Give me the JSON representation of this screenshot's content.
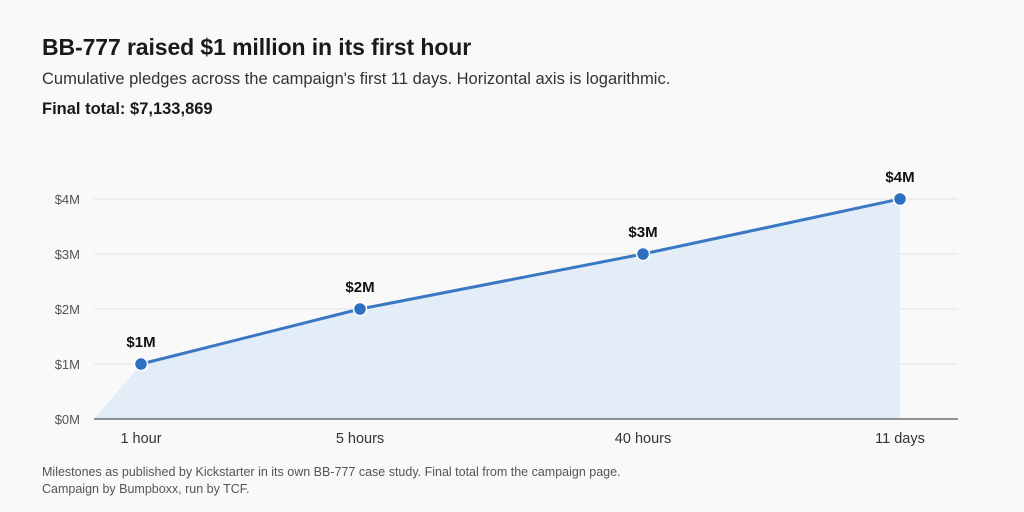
{
  "header": {
    "title": "BB-777 raised $1 million in its first hour",
    "subtitle": "Cumulative pledges across the campaign's first 11 days. Horizontal axis is logarithmic.",
    "total_label": "Final total:",
    "total_value": "$7,133,869"
  },
  "footer": {
    "line1": "Milestones as published by Kickstarter in its own BB-777 case study. Final total from the campaign page.",
    "line2": "Campaign by Bumpboxx, run by TCF."
  },
  "chart_data": {
    "type": "area",
    "x_scale": "log",
    "grid": true,
    "categories": [
      "1 hour",
      "5 hours",
      "40 hours",
      "11 days"
    ],
    "x_hours": [
      1,
      5,
      40,
      264
    ],
    "values": [
      1000000,
      2000000,
      3000000,
      4000000
    ],
    "data_labels": [
      "$1M",
      "$2M",
      "$3M",
      "$4M"
    ],
    "y_ticks": [
      0,
      1000000,
      2000000,
      3000000,
      4000000
    ],
    "y_tick_labels": [
      "$0M",
      "$1M",
      "$2M",
      "$3M",
      "$4M"
    ],
    "ylim": [
      0,
      4000000
    ],
    "colors": {
      "line": "#3a78c3",
      "area": "#e3edf8",
      "point": "#2f6fc0",
      "grid": "#e2e2e2",
      "axis": "#555555"
    }
  }
}
